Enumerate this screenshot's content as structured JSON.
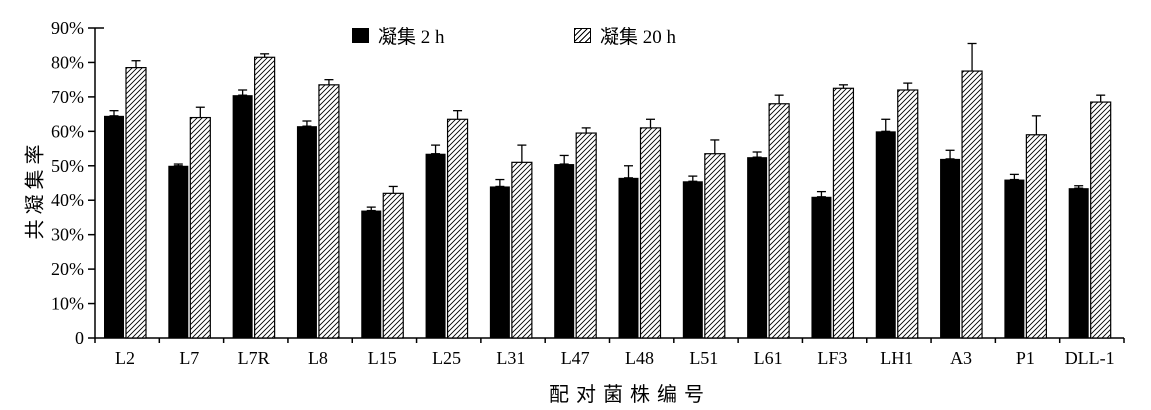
{
  "chart_data": {
    "type": "bar",
    "title": "",
    "xlabel": "配对菌株编号",
    "ylabel": "共凝集率",
    "categories": [
      "L2",
      "L7",
      "L7R",
      "L8",
      "L15",
      "L25",
      "L31",
      "L47",
      "L48",
      "L51",
      "L61",
      "LF3",
      "LH1",
      "A3",
      "P1",
      "DLL-1"
    ],
    "series": [
      {
        "name": "凝集 2 h",
        "style": "solid-black",
        "values": [
          64.5,
          50,
          70.5,
          61.5,
          37,
          53.5,
          44,
          50.5,
          46.5,
          45.5,
          52.5,
          41,
          60,
          52,
          46,
          43.5
        ],
        "errors": [
          1.5,
          0.5,
          1.5,
          1.5,
          1,
          2.5,
          2,
          2.5,
          3.5,
          1.5,
          1.5,
          1.5,
          3.5,
          2.5,
          1.5,
          0.7
        ]
      },
      {
        "name": "凝集 20 h",
        "style": "diagonal-hatch",
        "values": [
          78.5,
          64,
          81.5,
          73.5,
          42,
          63.5,
          51,
          59.5,
          61,
          53.5,
          68,
          72.5,
          72,
          77.5,
          59,
          68.5
        ],
        "errors": [
          2,
          3,
          1,
          1.5,
          2,
          2.5,
          5,
          1.5,
          2.5,
          4,
          2.5,
          1,
          2,
          8,
          5.5,
          2
        ]
      }
    ],
    "ylim": [
      0,
      90
    ],
    "y_tick_step": 10,
    "y_tick_labels": [
      "0",
      "10%",
      "20%",
      "30%",
      "40%",
      "50%",
      "60%",
      "70%",
      "80%",
      "90%"
    ],
    "grid": false,
    "legend_position": "top-center",
    "colors": {
      "series_2h_fill": "#000000",
      "series_20h_fill": "#ffffff",
      "stroke": "#000000",
      "background": "#ffffff"
    }
  }
}
